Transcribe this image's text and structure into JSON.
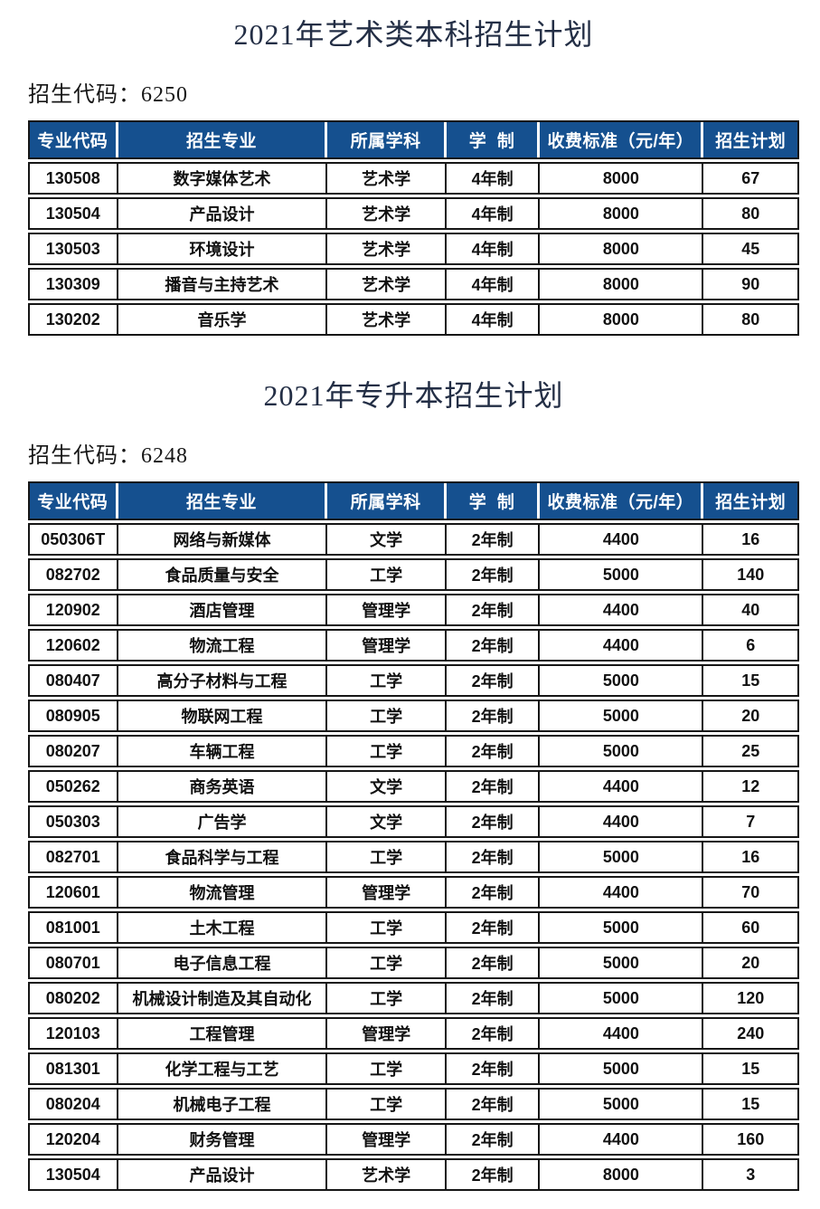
{
  "colors": {
    "header_bg": "#15508F",
    "header_text": "#FFFFFF",
    "body_text": "#111111",
    "border": "#161616",
    "title_text": "#232E45"
  },
  "sections": [
    {
      "title": "2021年艺术类本科招生计划",
      "code_label": "招生代码",
      "code_separator": "：",
      "code_value": "6250",
      "table": {
        "headers": [
          "专业代码",
          "招生专业",
          "所属学科",
          "学  制",
          "收费标准（元/年）",
          "招生计划"
        ],
        "rows": [
          [
            "130508",
            "数字媒体艺术",
            "艺术学",
            "4年制",
            "8000",
            "67"
          ],
          [
            "130504",
            "产品设计",
            "艺术学",
            "4年制",
            "8000",
            "80"
          ],
          [
            "130503",
            "环境设计",
            "艺术学",
            "4年制",
            "8000",
            "45"
          ],
          [
            "130309",
            "播音与主持艺术",
            "艺术学",
            "4年制",
            "8000",
            "90"
          ],
          [
            "130202",
            "音乐学",
            "艺术学",
            "4年制",
            "8000",
            "80"
          ]
        ]
      }
    },
    {
      "title": "2021年专升本招生计划",
      "code_label": "招生代码",
      "code_separator": "：",
      "code_value": "6248",
      "table": {
        "headers": [
          "专业代码",
          "招生专业",
          "所属学科",
          "学  制",
          "收费标准（元/年）",
          "招生计划"
        ],
        "rows": [
          [
            "050306T",
            "网络与新媒体",
            "文学",
            "2年制",
            "4400",
            "16"
          ],
          [
            "082702",
            "食品质量与安全",
            "工学",
            "2年制",
            "5000",
            "140"
          ],
          [
            "120902",
            "酒店管理",
            "管理学",
            "2年制",
            "4400",
            "40"
          ],
          [
            "120602",
            "物流工程",
            "管理学",
            "2年制",
            "4400",
            "6"
          ],
          [
            "080407",
            "高分子材料与工程",
            "工学",
            "2年制",
            "5000",
            "15"
          ],
          [
            "080905",
            "物联网工程",
            "工学",
            "2年制",
            "5000",
            "20"
          ],
          [
            "080207",
            "车辆工程",
            "工学",
            "2年制",
            "5000",
            "25"
          ],
          [
            "050262",
            "商务英语",
            "文学",
            "2年制",
            "4400",
            "12"
          ],
          [
            "050303",
            "广告学",
            "文学",
            "2年制",
            "4400",
            "7"
          ],
          [
            "082701",
            "食品科学与工程",
            "工学",
            "2年制",
            "5000",
            "16"
          ],
          [
            "120601",
            "物流管理",
            "管理学",
            "2年制",
            "4400",
            "70"
          ],
          [
            "081001",
            "土木工程",
            "工学",
            "2年制",
            "5000",
            "60"
          ],
          [
            "080701",
            "电子信息工程",
            "工学",
            "2年制",
            "5000",
            "20"
          ],
          [
            "080202",
            "机械设计制造及其自动化",
            "工学",
            "2年制",
            "5000",
            "120"
          ],
          [
            "120103",
            "工程管理",
            "管理学",
            "2年制",
            "4400",
            "240"
          ],
          [
            "081301",
            "化学工程与工艺",
            "工学",
            "2年制",
            "5000",
            "15"
          ],
          [
            "080204",
            "机械电子工程",
            "工学",
            "2年制",
            "5000",
            "15"
          ],
          [
            "120204",
            "财务管理",
            "管理学",
            "2年制",
            "4400",
            "160"
          ],
          [
            "130504",
            "产品设计",
            "艺术学",
            "2年制",
            "8000",
            "3"
          ]
        ]
      }
    }
  ]
}
